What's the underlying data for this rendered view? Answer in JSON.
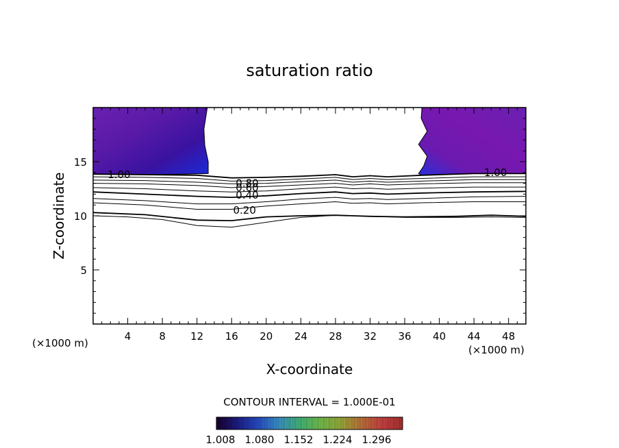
{
  "chart_data": {
    "type": "contour",
    "title": "saturation ratio",
    "xlabel": "X-coordinate",
    "ylabel": "Z-coordinate",
    "x_unit_left": "(×1000 m)",
    "x_unit_right": "(×1000 m)",
    "xlim": [
      0,
      50
    ],
    "ylim": [
      0,
      20
    ],
    "x_ticks": [
      4,
      8,
      12,
      16,
      20,
      24,
      28,
      32,
      36,
      40,
      44,
      48
    ],
    "x_tick_labels": [
      "4",
      "8",
      "12",
      "16",
      "20",
      "24",
      "28",
      "32",
      "36",
      "40",
      "44",
      "48"
    ],
    "y_ticks": [
      5,
      10,
      15
    ],
    "y_tick_labels": [
      "5",
      "10",
      "15"
    ],
    "contour_interval_text": "CONTOUR INTERVAL = 1.000E-01",
    "colorbar": {
      "tick_labels": [
        "1.008",
        "1.080",
        "1.152",
        "1.224",
        "1.296"
      ],
      "colors": [
        "#1a0030",
        "#1e1e8a",
        "#2850d2",
        "#3c9ad2",
        "#46be82",
        "#78c850",
        "#a0b43c",
        "#c8783c",
        "#d24646",
        "#b43232"
      ]
    },
    "contour_labels": [
      {
        "text": "1.00",
        "x": 3.0,
        "z": 13.8
      },
      {
        "text": "1.00",
        "x": 46.5,
        "z": 14.0
      },
      {
        "text": "0.80",
        "x": 17.8,
        "z": 13.0
      },
      {
        "text": "0.60",
        "x": 17.8,
        "z": 12.6
      },
      {
        "text": "0.40",
        "x": 17.8,
        "z": 11.9
      },
      {
        "text": "0.20",
        "x": 17.5,
        "z": 10.5
      }
    ],
    "contour_lines": [
      {
        "value": 1.0,
        "points": [
          [
            0,
            13.85
          ],
          [
            6,
            13.8
          ],
          [
            12,
            13.75
          ],
          [
            16,
            13.5
          ],
          [
            20,
            13.55
          ],
          [
            24,
            13.65
          ],
          [
            28,
            13.8
          ],
          [
            30,
            13.6
          ],
          [
            32,
            13.7
          ],
          [
            34,
            13.6
          ],
          [
            38,
            13.75
          ],
          [
            44,
            13.9
          ],
          [
            50,
            13.9
          ]
        ]
      },
      {
        "value": 0.9,
        "points": [
          [
            0,
            13.6
          ],
          [
            6,
            13.55
          ],
          [
            12,
            13.45
          ],
          [
            16,
            13.2
          ],
          [
            20,
            13.25
          ],
          [
            24,
            13.4
          ],
          [
            28,
            13.55
          ],
          [
            30,
            13.35
          ],
          [
            32,
            13.45
          ],
          [
            34,
            13.35
          ],
          [
            38,
            13.45
          ],
          [
            44,
            13.6
          ],
          [
            50,
            13.6
          ]
        ]
      },
      {
        "value": 0.8,
        "points": [
          [
            0,
            13.3
          ],
          [
            6,
            13.25
          ],
          [
            12,
            13.1
          ],
          [
            16,
            12.95
          ],
          [
            20,
            13.0
          ],
          [
            24,
            13.15
          ],
          [
            28,
            13.3
          ],
          [
            30,
            13.1
          ],
          [
            32,
            13.2
          ],
          [
            34,
            13.1
          ],
          [
            38,
            13.2
          ],
          [
            44,
            13.35
          ],
          [
            50,
            13.35
          ]
        ]
      },
      {
        "value": 0.7,
        "points": [
          [
            0,
            13.0
          ],
          [
            6,
            12.95
          ],
          [
            12,
            12.8
          ],
          [
            16,
            12.6
          ],
          [
            20,
            12.7
          ],
          [
            24,
            12.85
          ],
          [
            28,
            13.0
          ],
          [
            30,
            12.85
          ],
          [
            32,
            12.95
          ],
          [
            34,
            12.85
          ],
          [
            38,
            12.95
          ],
          [
            44,
            13.05
          ],
          [
            50,
            13.05
          ]
        ]
      },
      {
        "value": 0.6,
        "points": [
          [
            0,
            12.6
          ],
          [
            6,
            12.5
          ],
          [
            12,
            12.3
          ],
          [
            16,
            12.2
          ],
          [
            20,
            12.3
          ],
          [
            24,
            12.5
          ],
          [
            28,
            12.65
          ],
          [
            30,
            12.5
          ],
          [
            32,
            12.55
          ],
          [
            34,
            12.45
          ],
          [
            38,
            12.55
          ],
          [
            44,
            12.65
          ],
          [
            50,
            12.65
          ]
        ]
      },
      {
        "value": 0.5,
        "points": [
          [
            0,
            12.2
          ],
          [
            6,
            12.0
          ],
          [
            12,
            11.8
          ],
          [
            16,
            11.7
          ],
          [
            20,
            11.85
          ],
          [
            24,
            12.05
          ],
          [
            28,
            12.2
          ],
          [
            30,
            12.05
          ],
          [
            32,
            12.1
          ],
          [
            34,
            12.0
          ],
          [
            38,
            12.1
          ],
          [
            44,
            12.2
          ],
          [
            50,
            12.25
          ]
        ]
      },
      {
        "value": 0.4,
        "points": [
          [
            0,
            11.6
          ],
          [
            6,
            11.4
          ],
          [
            12,
            11.1
          ],
          [
            16,
            11.1
          ],
          [
            20,
            11.3
          ],
          [
            24,
            11.55
          ],
          [
            28,
            11.7
          ],
          [
            30,
            11.55
          ],
          [
            32,
            11.6
          ],
          [
            34,
            11.5
          ],
          [
            38,
            11.6
          ],
          [
            44,
            11.75
          ],
          [
            50,
            11.8
          ]
        ]
      },
      {
        "value": 0.3,
        "points": [
          [
            0,
            11.2
          ],
          [
            6,
            11.0
          ],
          [
            12,
            10.6
          ],
          [
            16,
            10.6
          ],
          [
            20,
            10.9
          ],
          [
            24,
            11.1
          ],
          [
            28,
            11.3
          ],
          [
            30,
            11.15
          ],
          [
            32,
            11.2
          ],
          [
            34,
            11.1
          ],
          [
            38,
            11.2
          ],
          [
            44,
            11.3
          ],
          [
            50,
            11.3
          ]
        ]
      },
      {
        "value": 0.2,
        "points": [
          [
            0,
            10.3
          ],
          [
            6,
            10.1
          ],
          [
            12,
            9.6
          ],
          [
            16,
            9.55
          ],
          [
            20,
            9.9
          ],
          [
            24,
            10.0
          ],
          [
            28,
            10.05
          ],
          [
            32,
            9.95
          ],
          [
            36,
            9.9
          ],
          [
            42,
            9.95
          ],
          [
            46,
            10.05
          ],
          [
            50,
            9.95
          ]
        ]
      },
      {
        "value": 0.1,
        "points": [
          [
            0,
            10.0
          ],
          [
            4,
            9.9
          ],
          [
            8,
            9.65
          ],
          [
            12,
            9.1
          ],
          [
            16,
            8.95
          ],
          [
            20,
            9.4
          ],
          [
            24,
            9.85
          ],
          [
            28,
            10.05
          ],
          [
            32,
            9.95
          ],
          [
            36,
            9.85
          ],
          [
            42,
            9.85
          ],
          [
            46,
            9.9
          ],
          [
            50,
            9.85
          ]
        ]
      }
    ]
  }
}
